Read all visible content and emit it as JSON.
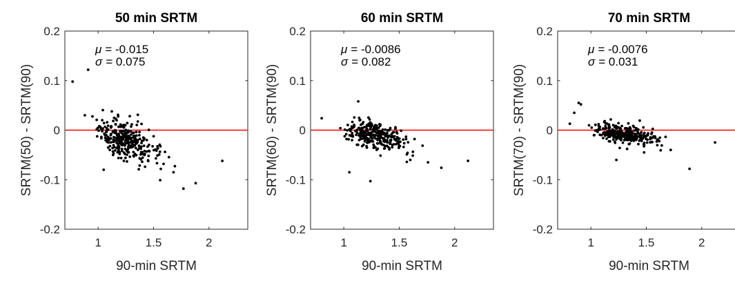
{
  "chart_data": [
    {
      "type": "scatter",
      "title": "50 min SRTM",
      "xlabel": "90-min SRTM",
      "ylabel": "SRTM(50) - SRTM(90)",
      "xlim": [
        0.7,
        2.35
      ],
      "ylim": [
        -0.2,
        0.2
      ],
      "xticks": [
        1,
        1.5,
        2
      ],
      "xtick_labels": [
        "1",
        "1.5",
        "2"
      ],
      "yticks": [
        -0.2,
        -0.1,
        0,
        0.1,
        0.2
      ],
      "ytick_labels": [
        "-0.2",
        "-0.1",
        "0",
        "0.1",
        "0.2"
      ],
      "ref_line": 0,
      "ref_line_color": "#ff0000",
      "stats": {
        "mu_label": "μ",
        "mu_value": "= -0.015",
        "sigma_label": "σ",
        "sigma_value": "= 0.075"
      },
      "n_points": 300,
      "seed": 101,
      "x_center": 1.2,
      "x_spread": 0.16,
      "slope": -0.085,
      "y_base": -0.015,
      "y_noise": 0.018,
      "points": [
        [
          0.77,
          0.098
        ],
        [
          0.91,
          0.122
        ],
        [
          0.88,
          0.03
        ],
        [
          1.77,
          -0.118
        ],
        [
          1.88,
          -0.107
        ],
        [
          2.12,
          -0.062
        ],
        [
          1.56,
          -0.101
        ],
        [
          1.05,
          -0.08
        ],
        [
          1.68,
          -0.085
        ]
      ]
    },
    {
      "type": "scatter",
      "title": "60 min SRTM",
      "xlabel": "90-min SRTM",
      "ylabel": "SRTM(60) - SRTM(90)",
      "xlim": [
        0.7,
        2.35
      ],
      "ylim": [
        -0.2,
        0.2
      ],
      "xticks": [
        1,
        1.5,
        2
      ],
      "xtick_labels": [
        "1",
        "1.5",
        "2"
      ],
      "yticks": [
        -0.2,
        -0.1,
        0,
        0.1,
        0.2
      ],
      "ytick_labels": [
        "-0.2",
        "-0.1",
        "0",
        "0.1",
        "0.2"
      ],
      "ref_line": 0,
      "ref_line_color": "#ff0000",
      "stats": {
        "mu_label": "μ",
        "mu_value": "= -0.0086",
        "sigma_label": "σ",
        "sigma_value": "= 0.082"
      },
      "n_points": 300,
      "seed": 202,
      "x_center": 1.22,
      "x_spread": 0.17,
      "slope": -0.05,
      "y_base": -0.008,
      "y_noise": 0.014,
      "points": [
        [
          0.8,
          0.024
        ],
        [
          1.13,
          0.058
        ],
        [
          1.24,
          -0.103
        ],
        [
          2.12,
          -0.062
        ],
        [
          1.88,
          -0.076
        ],
        [
          1.76,
          -0.065
        ],
        [
          1.05,
          -0.085
        ],
        [
          1.6,
          -0.06
        ]
      ]
    },
    {
      "type": "scatter",
      "title": "70 min SRTM",
      "xlabel": "90-min SRTM",
      "ylabel": "SRTM(70) - SRTM(90)",
      "xlim": [
        0.7,
        2.35
      ],
      "ylim": [
        -0.2,
        0.2
      ],
      "xticks": [
        1,
        1.5,
        2
      ],
      "xtick_labels": [
        "1",
        "1.5",
        "2"
      ],
      "yticks": [
        -0.2,
        -0.1,
        0,
        0.1,
        0.2
      ],
      "ytick_labels": [
        "-0.2",
        "-0.1",
        "0",
        "0.1",
        "0.2"
      ],
      "ref_line": 0,
      "ref_line_color": "#ff0000",
      "stats": {
        "mu_label": "μ",
        "mu_value": "= -0.0076",
        "sigma_label": "σ",
        "sigma_value": "= 0.031"
      },
      "n_points": 300,
      "seed": 303,
      "x_center": 1.25,
      "x_spread": 0.17,
      "slope": -0.035,
      "y_base": -0.006,
      "y_noise": 0.009,
      "points": [
        [
          0.81,
          0.013
        ],
        [
          0.85,
          0.035
        ],
        [
          0.89,
          0.055
        ],
        [
          0.91,
          0.052
        ],
        [
          1.89,
          -0.078
        ],
        [
          2.12,
          -0.025
        ],
        [
          1.72,
          -0.04
        ],
        [
          1.48,
          -0.045
        ],
        [
          1.23,
          -0.06
        ]
      ]
    }
  ]
}
